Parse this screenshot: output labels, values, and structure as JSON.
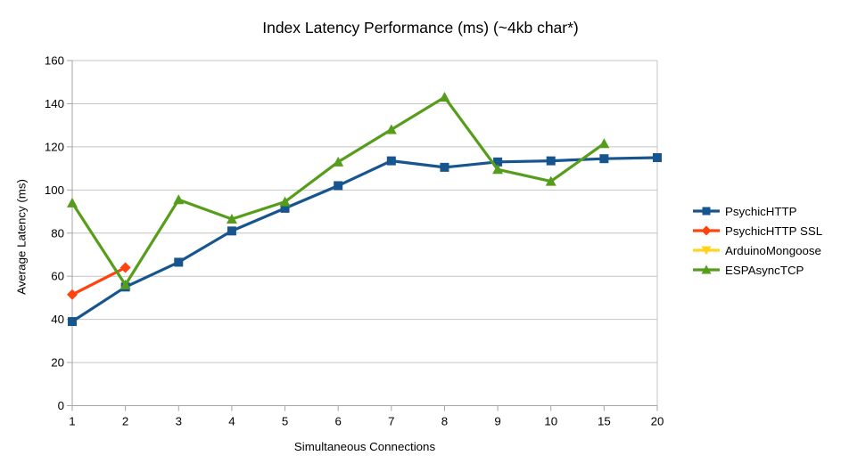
{
  "chart_data": {
    "type": "line",
    "title": "Index Latency Performance (ms) (~4kb char*)",
    "xlabel": "Simultaneous Connections",
    "ylabel": "Average Latency (ms)",
    "categories": [
      "1",
      "2",
      "3",
      "4",
      "5",
      "6",
      "7",
      "8",
      "9",
      "10",
      "15",
      "20"
    ],
    "ylim": [
      0,
      160
    ],
    "ytick_step": 20,
    "ytick_labels": [
      "0",
      "20",
      "40",
      "60",
      "80",
      "100",
      "120",
      "140",
      "160"
    ],
    "grid": "horizontal",
    "legend_position": "right",
    "axis_color": "#a6a6a6",
    "grid_color": "#c4c4c4",
    "text_color": "#000000",
    "series": [
      {
        "name": "PsychicHTTP",
        "color": "#17558F",
        "marker": "square",
        "values": [
          39,
          55,
          66.5,
          81,
          91.5,
          102,
          113.5,
          110.5,
          113,
          113.5,
          114.5,
          115
        ]
      },
      {
        "name": "PsychicHTTP SSL",
        "color": "#FF420E",
        "marker": "diamond",
        "values": [
          51.5,
          64,
          null,
          null,
          null,
          null,
          null,
          null,
          null,
          null,
          null,
          null
        ]
      },
      {
        "name": "ArduinoMongoose",
        "color": "#FFD320",
        "marker": "triangle-down",
        "values": [
          null,
          null,
          null,
          null,
          null,
          null,
          null,
          null,
          null,
          null,
          null,
          null
        ]
      },
      {
        "name": "ESPAsyncTCP",
        "color": "#579D1C",
        "marker": "triangle-up",
        "values": [
          94,
          56,
          95.5,
          86.5,
          94.5,
          113,
          128,
          143,
          109.5,
          104,
          121.5,
          null
        ]
      }
    ]
  }
}
